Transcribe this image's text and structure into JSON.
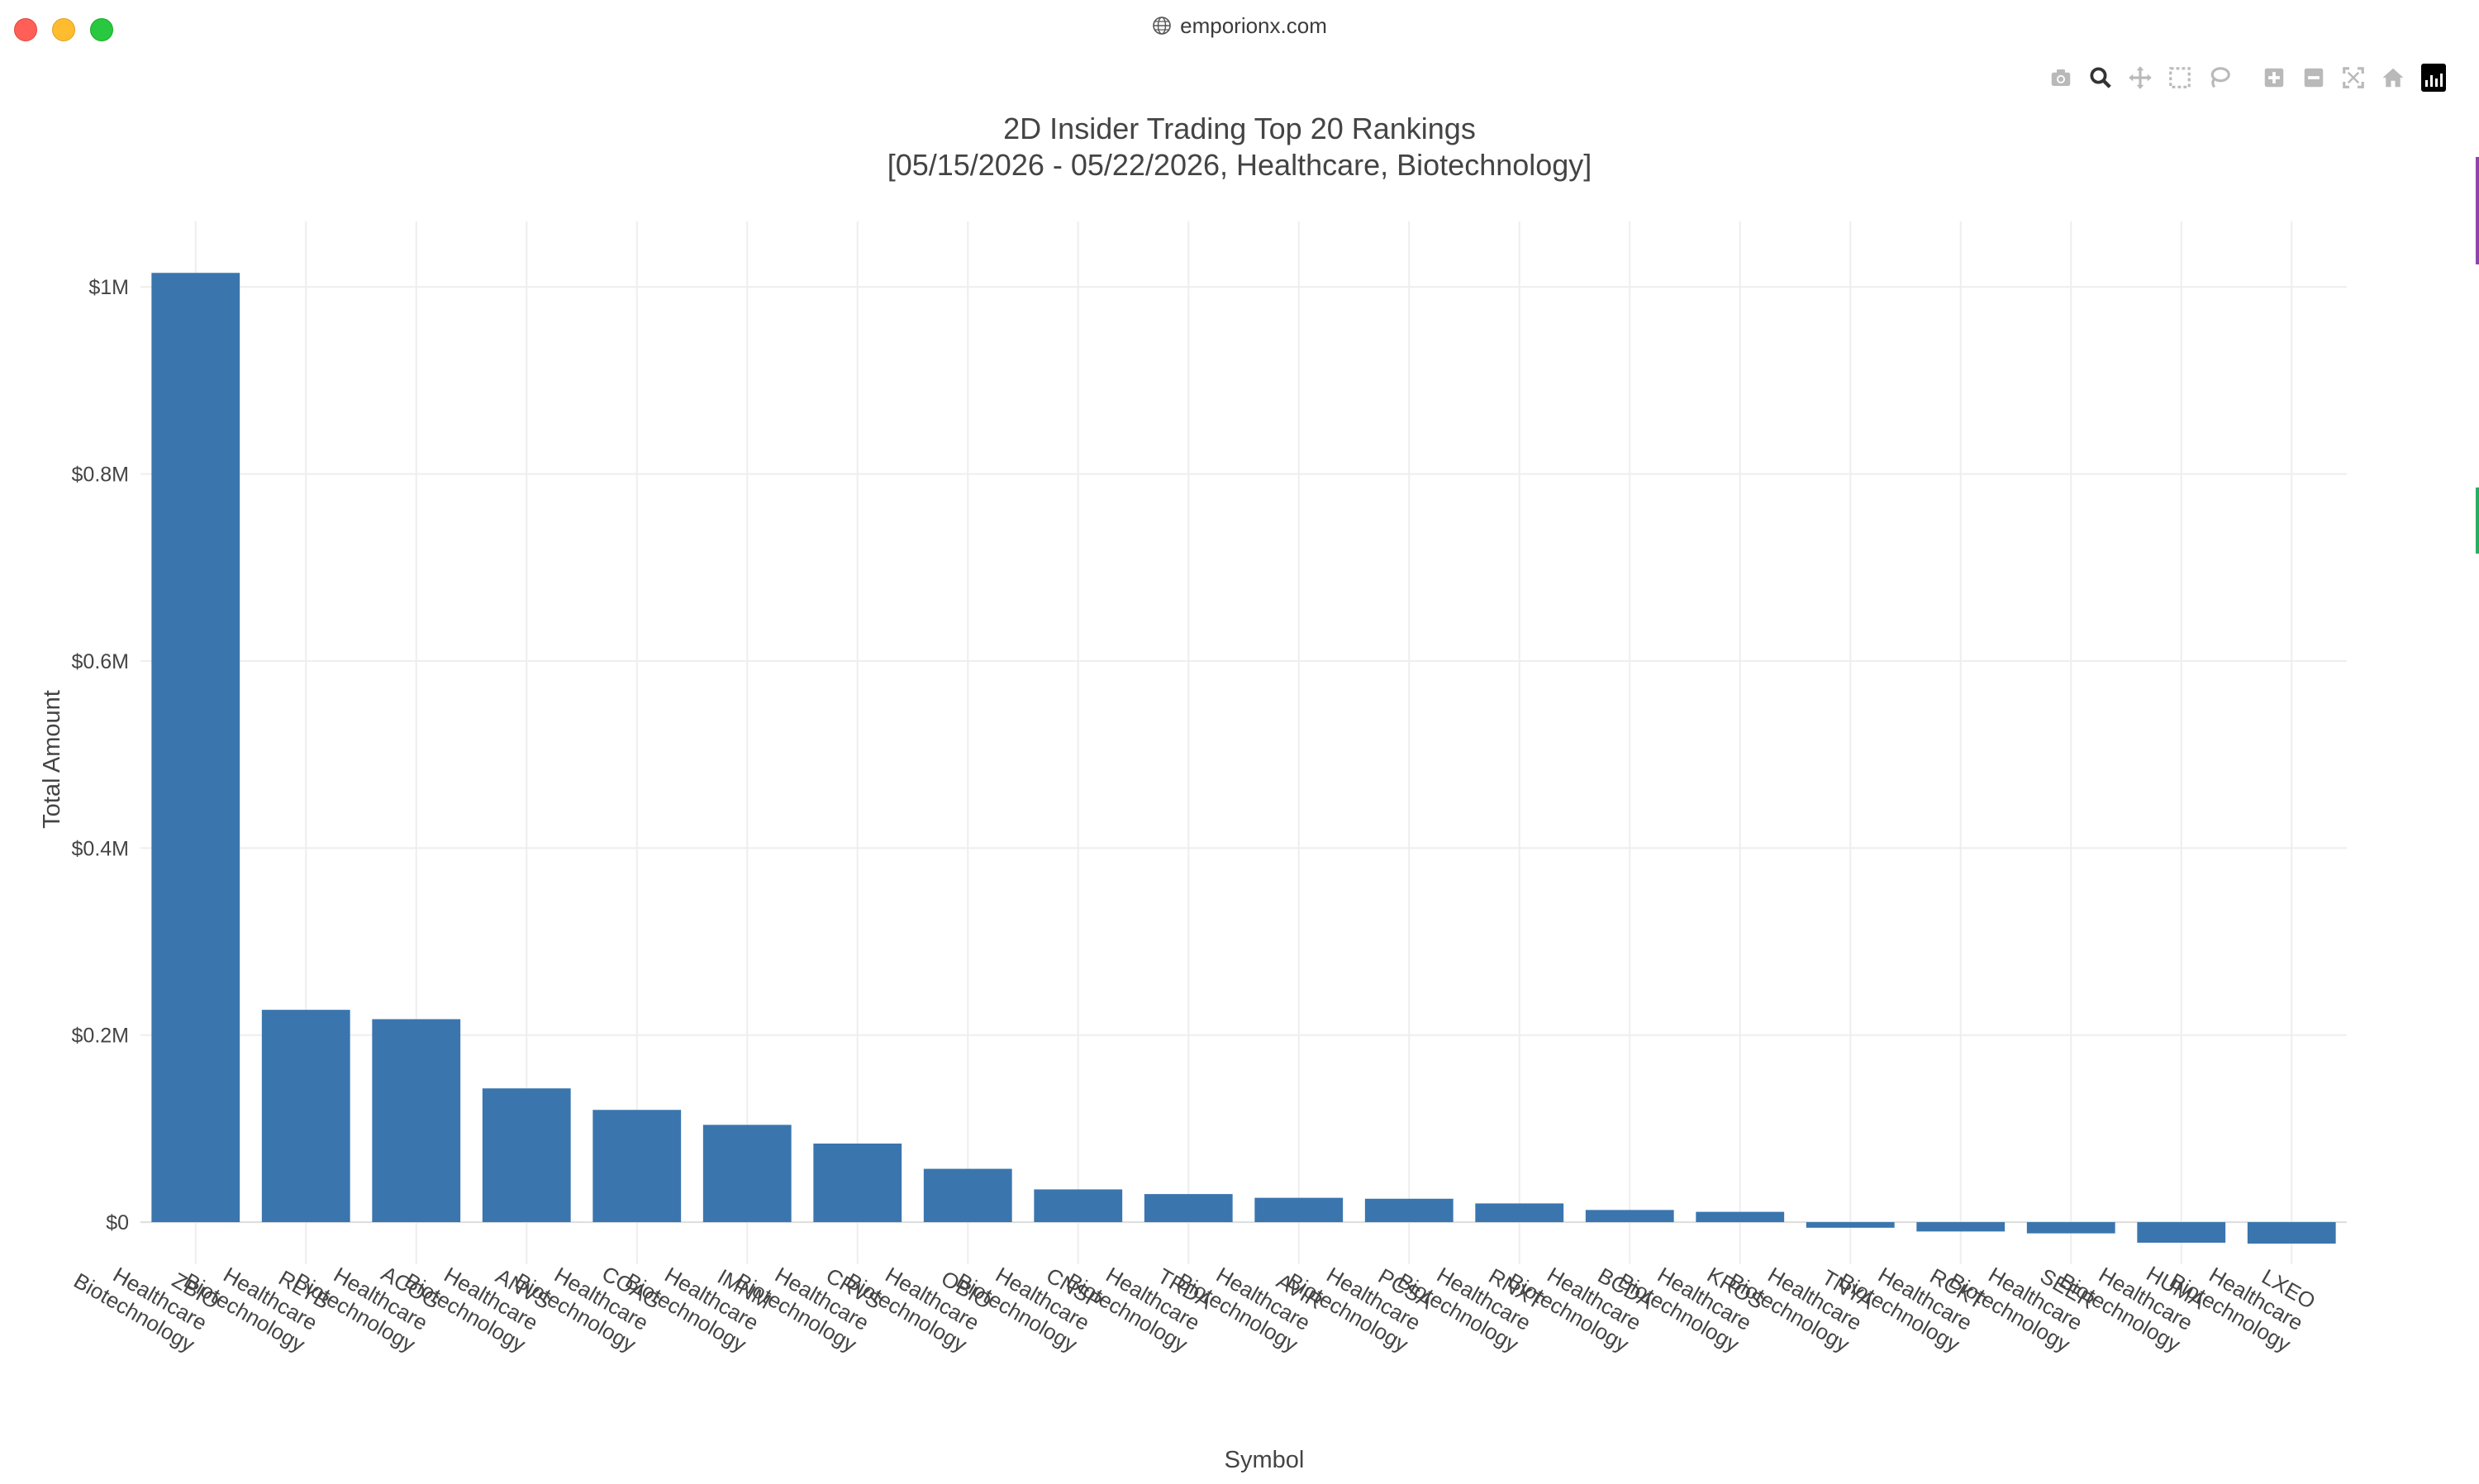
{
  "window": {
    "url": "emporionx.com"
  },
  "modebar": {
    "icons": [
      "camera-icon",
      "zoom-icon",
      "pan-icon",
      "box-select-icon",
      "lasso-icon",
      "zoom-in-icon",
      "zoom-out-icon",
      "autoscale-icon",
      "reset-axes-icon",
      "plotly-logo-icon"
    ]
  },
  "colors": {
    "bar": "#3a75ae",
    "grid": "#eeeeee",
    "text": "#444444"
  },
  "chart_data": {
    "type": "bar",
    "title": "2D Insider Trading Top 20 Rankings",
    "subtitle": "[05/15/2026 - 05/22/2026, Healthcare, Biotechnology]",
    "xlabel": "Symbol",
    "ylabel": "Total Amount",
    "ylim": [
      -0.045,
      1.07
    ],
    "yticks": [
      0,
      0.2,
      0.4,
      0.6,
      0.8,
      1.0
    ],
    "ytick_labels": [
      "$0",
      "$0.2M",
      "$0.4M",
      "$0.6M",
      "$0.8M",
      "$1M"
    ],
    "grid": true,
    "legend": "none",
    "categories": [
      [
        "ZBIO",
        "Healthcare",
        "Biotechnology"
      ],
      [
        "RLYB",
        "Healthcare",
        "Biotechnology"
      ],
      [
        "ACOG",
        "Healthcare",
        "Biotechnology"
      ],
      [
        "ANVS",
        "Healthcare",
        "Biotechnology"
      ],
      [
        "COAG",
        "Healthcare",
        "Biotechnology"
      ],
      [
        "IMNM",
        "Healthcare",
        "Biotechnology"
      ],
      [
        "CRVS",
        "Healthcare",
        "Biotechnology"
      ],
      [
        "OBIO",
        "Healthcare",
        "Biotechnology"
      ],
      [
        "CNSP",
        "Healthcare",
        "Biotechnology"
      ],
      [
        "TRDA",
        "Healthcare",
        "Biotechnology"
      ],
      [
        "AVIR",
        "Healthcare",
        "Biotechnology"
      ],
      [
        "PCSA",
        "Healthcare",
        "Biotechnology"
      ],
      [
        "RNXT",
        "Healthcare",
        "Biotechnology"
      ],
      [
        "BCDA",
        "Healthcare",
        "Biotechnology"
      ],
      [
        "KROS",
        "Healthcare",
        "Biotechnology"
      ],
      [
        "TNYA",
        "Healthcare",
        "Biotechnology"
      ],
      [
        "RCKT",
        "Healthcare",
        "Biotechnology"
      ],
      [
        "SEER",
        "Healthcare",
        "Biotechnology"
      ],
      [
        "HUMA",
        "Healthcare",
        "Biotechnology"
      ],
      [
        "LXEO",
        "Healthcare",
        "Biotechnology"
      ]
    ],
    "values": [
      1.015,
      0.227,
      0.217,
      0.143,
      0.12,
      0.104,
      0.084,
      0.057,
      0.035,
      0.03,
      0.026,
      0.025,
      0.02,
      0.013,
      0.011,
      -0.006,
      -0.01,
      -0.012,
      -0.022,
      -0.023
    ]
  }
}
